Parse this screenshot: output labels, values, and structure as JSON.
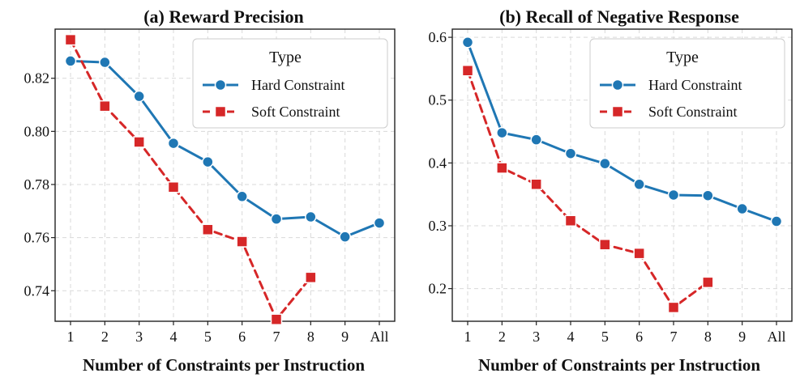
{
  "chart_data": [
    {
      "type": "line",
      "title": "(a) Reward Precision",
      "xlabel": "Number of Constraints per Instruction",
      "ylabel": "",
      "categories": [
        "1",
        "2",
        "3",
        "4",
        "5",
        "6",
        "7",
        "8",
        "9",
        "All"
      ],
      "ylim": [
        0.7285,
        0.8385
      ],
      "yticks": [
        0.74,
        0.76,
        0.78,
        0.8,
        0.82
      ],
      "ytick_labels": [
        "0.74",
        "0.76",
        "0.78",
        "0.80",
        "0.82"
      ],
      "grid": true,
      "legend": {
        "title": "Type",
        "placement": "top-right"
      },
      "series": [
        {
          "name": "Hard Constraint",
          "marker": "circle",
          "linestyle": "solid",
          "color": "#1f77b4",
          "values": [
            0.8265,
            0.826,
            0.8132,
            0.7955,
            0.7885,
            0.7755,
            0.767,
            0.7678,
            0.7603,
            0.7655
          ]
        },
        {
          "name": "Soft Constraint",
          "marker": "square",
          "linestyle": "dashed",
          "color": "#d62728",
          "values": [
            0.8345,
            0.8095,
            0.796,
            0.779,
            0.763,
            0.7585,
            0.7292,
            0.745,
            null,
            null
          ]
        }
      ]
    },
    {
      "type": "line",
      "title": "(b) Recall of Negative Response",
      "xlabel": "Number of Constraints per Instruction",
      "ylabel": "",
      "categories": [
        "1",
        "2",
        "3",
        "4",
        "5",
        "6",
        "7",
        "8",
        "9",
        "All"
      ],
      "ylim": [
        0.148,
        0.613
      ],
      "yticks": [
        0.2,
        0.3,
        0.4,
        0.5,
        0.6
      ],
      "ytick_labels": [
        "0.2",
        "0.3",
        "0.4",
        "0.5",
        "0.6"
      ],
      "grid": true,
      "legend": {
        "title": "Type",
        "placement": "top-right"
      },
      "series": [
        {
          "name": "Hard Constraint",
          "marker": "circle",
          "linestyle": "solid",
          "color": "#1f77b4",
          "values": [
            0.592,
            0.448,
            0.437,
            0.415,
            0.399,
            0.366,
            0.349,
            0.348,
            0.327,
            0.307
          ]
        },
        {
          "name": "Soft Constraint",
          "marker": "square",
          "linestyle": "dashed",
          "color": "#d62728",
          "values": [
            0.547,
            0.392,
            0.366,
            0.308,
            0.27,
            0.256,
            0.17,
            0.21,
            null,
            null
          ]
        }
      ]
    }
  ]
}
